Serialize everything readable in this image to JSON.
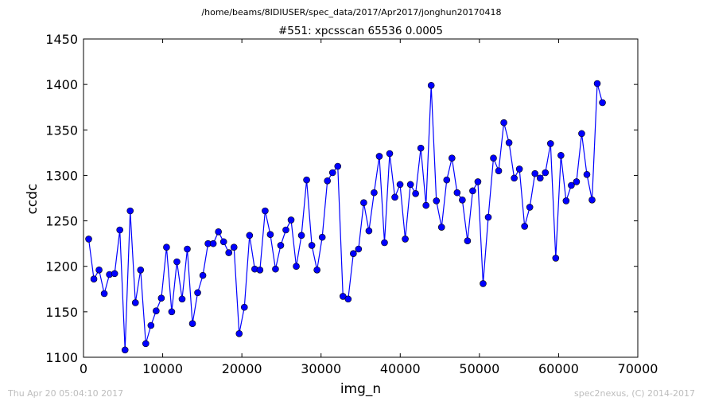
{
  "header": {
    "path": "/home/beams/8IDIUSER/spec_data/2017/Apr2017/jonghun20170418"
  },
  "footer": {
    "timestamp": "Thu Apr 20 05:04:10 2017",
    "credit": "spec2nexus, (C) 2014-2017"
  },
  "chart_data": {
    "type": "line",
    "title": "#551: xpcsscan 65536 0.0005",
    "xlabel": "img_n",
    "ylabel": "ccdc",
    "xlim": [
      0,
      70000
    ],
    "ylim": [
      1100,
      1450
    ],
    "xticks": [
      0,
      10000,
      20000,
      30000,
      40000,
      50000,
      60000,
      70000
    ],
    "yticks": [
      1100,
      1150,
      1200,
      1250,
      1300,
      1350,
      1400,
      1450
    ],
    "grid": false,
    "colors": {
      "line": "#0000ff",
      "marker": "#0000ff"
    },
    "series": [
      {
        "x": [
          655,
          1311,
          1966,
          2621,
          3277,
          3932,
          4588,
          5243,
          5898,
          6554,
          7209,
          7864,
          8520,
          9175,
          9830,
          10486,
          11141,
          11796,
          12452,
          13107,
          13763,
          14418,
          15073,
          15729,
          16384,
          17039,
          17695,
          18350,
          19005,
          19661,
          20316,
          20972,
          21627,
          22282,
          22938,
          23593,
          24248,
          24904,
          25559,
          26214,
          26870,
          27525,
          28180,
          28836,
          29491,
          30147,
          30802,
          31457,
          32113,
          32768,
          33423,
          34079,
          34734,
          35389,
          36045,
          36700,
          37356,
          38011,
          38666,
          39322,
          39977,
          40632,
          41288,
          41943,
          42598,
          43254,
          43909,
          44564,
          45220,
          45875,
          46531,
          47186,
          47841,
          48497,
          49152,
          49807,
          50463,
          51118,
          51773,
          52429,
          53084,
          53740,
          54395,
          55050,
          55706,
          56361,
          57016,
          57672,
          58327,
          58982,
          59638,
          60293,
          60948,
          61604,
          62259,
          62915,
          63570,
          64225,
          64881,
          65536
        ],
        "y": [
          1230,
          1186,
          1196,
          1170,
          1191,
          1192,
          1240,
          1108,
          1261,
          1160,
          1196,
          1115,
          1135,
          1151,
          1165,
          1221,
          1150,
          1205,
          1164,
          1219,
          1137,
          1171,
          1190,
          1225,
          1225,
          1238,
          1227,
          1215,
          1221,
          1126,
          1155,
          1234,
          1197,
          1196,
          1261,
          1235,
          1197,
          1223,
          1240,
          1251,
          1200,
          1234,
          1295,
          1223,
          1196,
          1232,
          1294,
          1303,
          1310,
          1167,
          1164,
          1214,
          1219,
          1270,
          1239,
          1281,
          1321,
          1226,
          1324,
          1276,
          1290,
          1230,
          1290,
          1280,
          1330,
          1267,
          1399,
          1272,
          1243,
          1295,
          1319,
          1281,
          1273,
          1228,
          1283,
          1293,
          1181,
          1254,
          1319,
          1305,
          1358,
          1336,
          1297,
          1307,
          1244,
          1265,
          1302,
          1297,
          1303,
          1335,
          1209,
          1322,
          1272,
          1289,
          1293,
          1346,
          1301,
          1273,
          1401,
          1380
        ]
      }
    ]
  }
}
